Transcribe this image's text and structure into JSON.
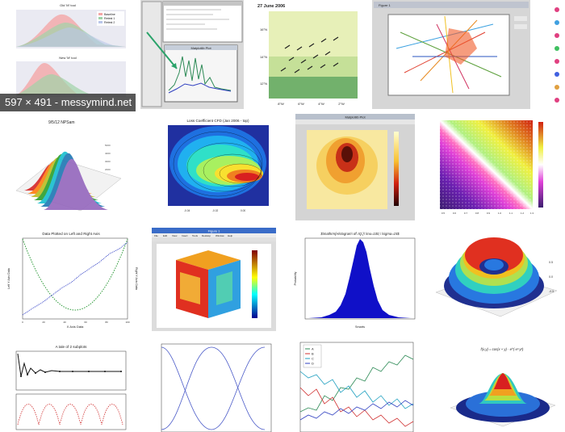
{
  "tiles": [
    {
      "name": "tile-kde-subplots",
      "caption": "597 × 491 - messymind.net",
      "titles": [
        "Old 'M' tool",
        "New 'M' tool"
      ],
      "legend": [
        "Baseline",
        "Retest 1",
        "Retest 2"
      ]
    },
    {
      "name": "tile-ipython-gui",
      "panel_title": "Matplotlib Plot"
    },
    {
      "name": "tile-weather-map",
      "title": "27 June 2006",
      "y_ticks": [
        "16°N",
        "14°N",
        "12°N"
      ],
      "x_ticks": [
        "8°W",
        "6°W",
        "4°W",
        "2°W"
      ]
    },
    {
      "name": "tile-network-plot",
      "window_title": "Figure 1"
    },
    {
      "name": "tile-3d-waterfall",
      "title": "9/5/12 NPSam"
    },
    {
      "name": "tile-contour-cfd",
      "title": "Loss Coefficient CFD (Jan 2006 - top)"
    },
    {
      "name": "tile-heatmap-window",
      "window_title": "Matplotlib Plot"
    },
    {
      "name": "tile-diagonal-heatmap",
      "x_ticks": [
        "0.5",
        "0.6",
        "0.7",
        "0.8",
        "0.9",
        "1.0",
        "1.1",
        "1.2",
        "1.3"
      ]
    },
    {
      "name": "tile-dual-axis",
      "title": "Data Plotted on Left and Right Axis",
      "xlabel": "X Axis Data",
      "ylabel_left": "Left Y Axis Data",
      "ylabel_right": "Right Y Axis Data",
      "x_ticks": [
        "0",
        "20",
        "40",
        "60",
        "80",
        "100"
      ]
    },
    {
      "name": "tile-cube-volume",
      "window_title": "Figure 1",
      "menu": [
        "File",
        "Edit",
        "View",
        "Insert",
        "Tools",
        "Desktop",
        "Window",
        "Help"
      ]
    },
    {
      "name": "tile-histogram",
      "title": "$\\mathrm{Histogram\\ of\\ IQ:}\\ \\mu=100,\\ \\sigma=15$",
      "xlabel": "Smarts",
      "ylabel": "Probability"
    },
    {
      "name": "tile-3d-surface",
      "z_ticks": [
        "0.5",
        "0.0",
        "-0.5"
      ]
    },
    {
      "name": "tile-two-subplots",
      "title": "A tale of 2 subplots"
    },
    {
      "name": "tile-sine-lines"
    },
    {
      "name": "tile-random-walk",
      "legend": [
        "A",
        "B",
        "C",
        "D"
      ]
    },
    {
      "name": "tile-3d-gaussian",
      "title": "f(x,y) = cos(x + y) · e^(-x²-y²)"
    }
  ]
}
